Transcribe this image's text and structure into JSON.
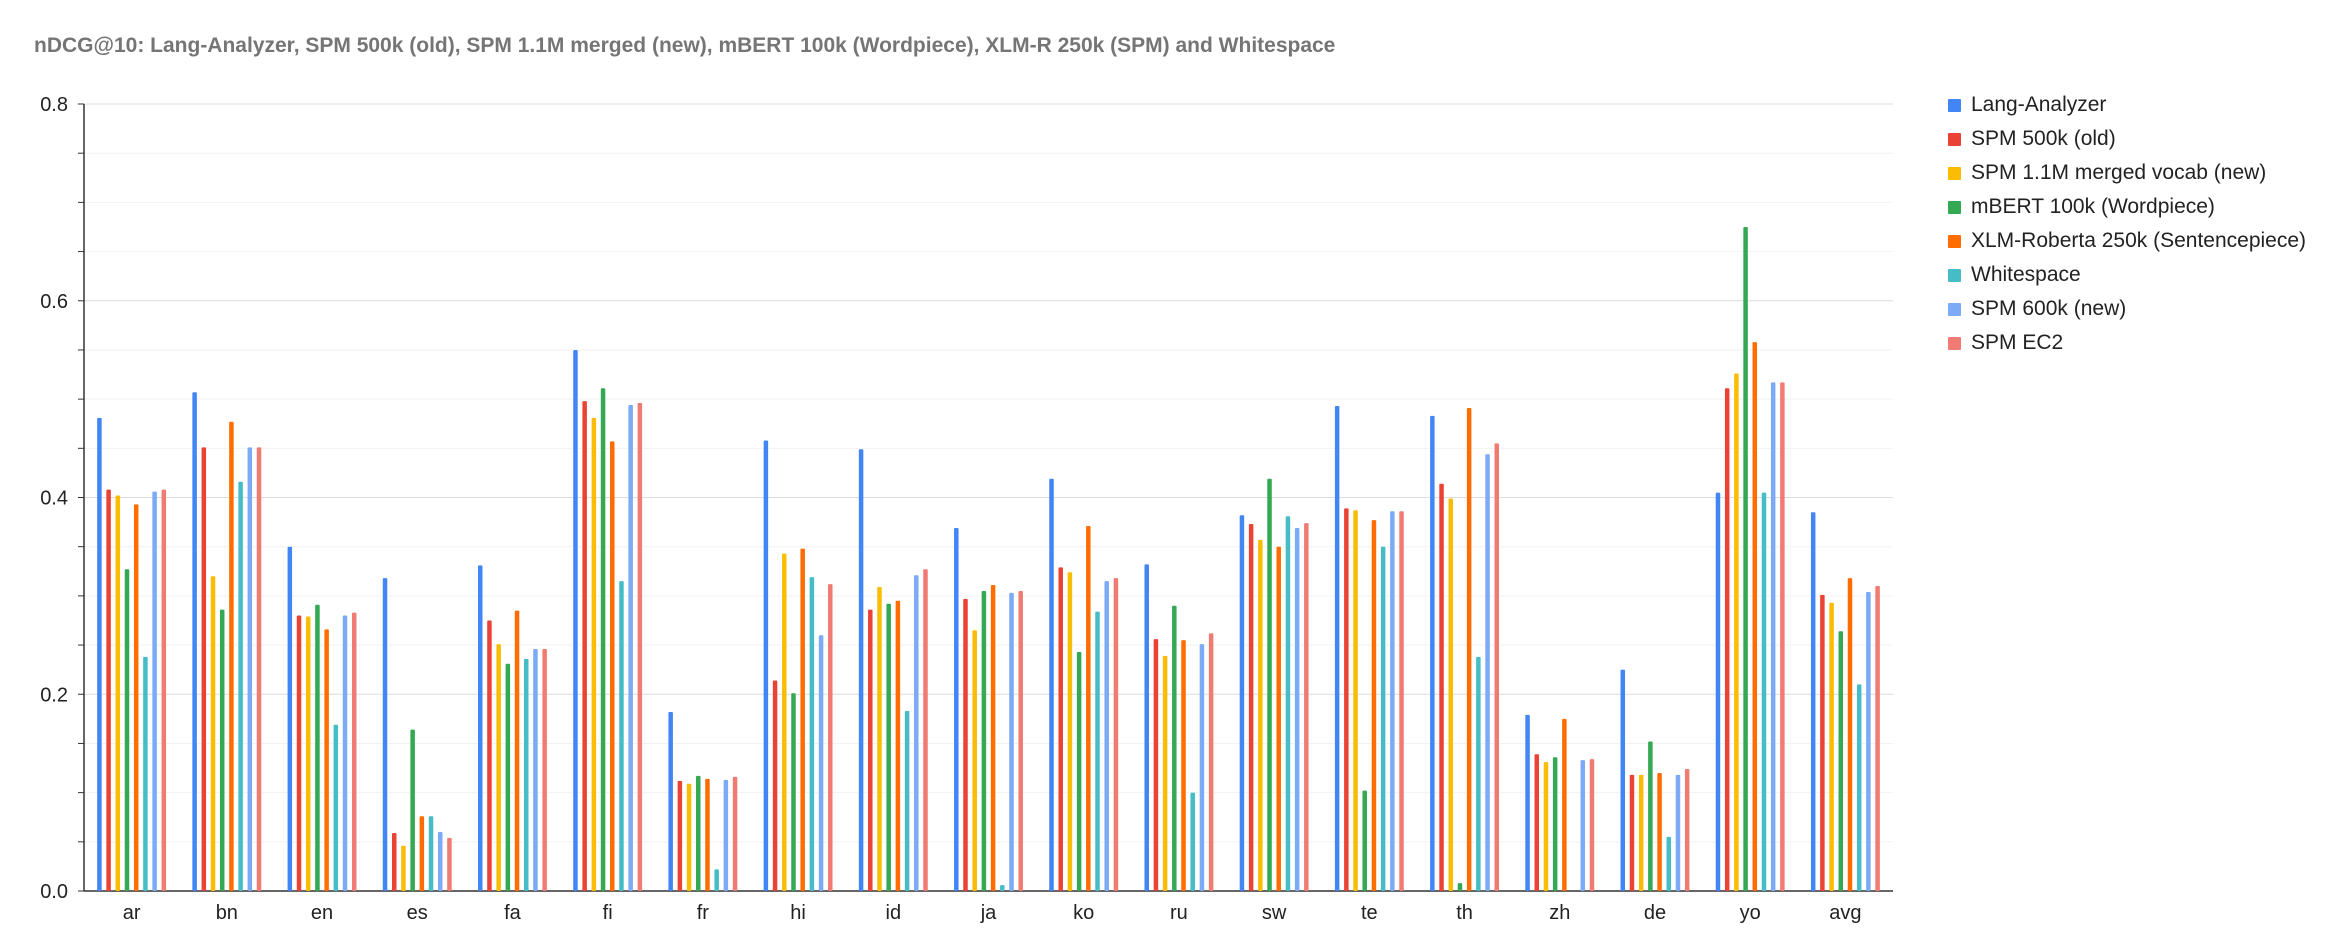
{
  "chart_data": {
    "type": "bar",
    "title": "nDCG@10: Lang-Analyzer, SPM 500k (old), SPM 1.1M merged (new), mBERT 100k (Wordpiece), XLM-R 250k (SPM) and Whitespace",
    "xlabel": "",
    "ylabel": "",
    "ylim": [
      0,
      0.8
    ],
    "yticks": [
      "0.0",
      "0.2",
      "0.4",
      "0.6",
      "0.8"
    ],
    "grid": true,
    "legend_position": "right",
    "categories": [
      "ar",
      "bn",
      "en",
      "es",
      "fa",
      "fi",
      "fr",
      "hi",
      "id",
      "ja",
      "ko",
      "ru",
      "sw",
      "te",
      "th",
      "zh",
      "de",
      "yo",
      "avg"
    ],
    "series": [
      {
        "name": "Lang-Analyzer",
        "color": "#4285f4",
        "values": [
          0.481,
          0.507,
          0.35,
          0.318,
          0.331,
          0.55,
          0.182,
          0.458,
          0.449,
          0.369,
          0.419,
          0.332,
          0.382,
          0.493,
          0.483,
          0.179,
          0.225,
          0.405,
          0.385
        ]
      },
      {
        "name": "SPM 500k (old)",
        "color": "#ea4335",
        "values": [
          0.408,
          0.451,
          0.28,
          0.059,
          0.275,
          0.498,
          0.112,
          0.214,
          0.286,
          0.297,
          0.329,
          0.256,
          0.373,
          0.389,
          0.414,
          0.139,
          0.118,
          0.511,
          0.301
        ]
      },
      {
        "name": "SPM 1.1M merged vocab (new)",
        "color": "#fbbc04",
        "values": [
          0.402,
          0.32,
          0.279,
          0.046,
          0.251,
          0.481,
          0.109,
          0.343,
          0.309,
          0.265,
          0.324,
          0.239,
          0.357,
          0.387,
          0.399,
          0.131,
          0.118,
          0.526,
          0.293
        ]
      },
      {
        "name": "mBERT 100k (Wordpiece)",
        "color": "#34a853",
        "values": [
          0.327,
          0.286,
          0.291,
          0.164,
          0.231,
          0.511,
          0.117,
          0.201,
          0.292,
          0.305,
          0.243,
          0.29,
          0.419,
          0.102,
          0.008,
          0.136,
          0.152,
          0.675,
          0.264
        ]
      },
      {
        "name": "XLM-Roberta 250k (Sentencepiece)",
        "color": "#ff6d01",
        "values": [
          0.393,
          0.477,
          0.266,
          0.076,
          0.285,
          0.457,
          0.114,
          0.348,
          0.295,
          0.311,
          0.371,
          0.255,
          0.35,
          0.377,
          0.491,
          0.175,
          0.12,
          0.558,
          0.318
        ]
      },
      {
        "name": "Whitespace",
        "color": "#46bdc6",
        "values": [
          0.238,
          0.416,
          0.169,
          0.076,
          0.236,
          0.315,
          0.022,
          0.319,
          0.183,
          0.006,
          0.284,
          0.1,
          0.381,
          0.35,
          0.238,
          0.0,
          0.055,
          0.405,
          0.21
        ]
      },
      {
        "name": "SPM 600k (new)",
        "color": "#7baaf7",
        "values": [
          0.406,
          0.451,
          0.28,
          0.06,
          0.246,
          0.494,
          0.113,
          0.26,
          0.321,
          0.303,
          0.315,
          0.251,
          0.369,
          0.386,
          0.444,
          0.133,
          0.118,
          0.517,
          0.304
        ]
      },
      {
        "name": "SPM EC2",
        "color": "#f07b72",
        "values": [
          0.408,
          0.451,
          0.283,
          0.054,
          0.246,
          0.496,
          0.116,
          0.312,
          0.327,
          0.305,
          0.318,
          0.262,
          0.374,
          0.386,
          0.455,
          0.134,
          0.124,
          0.517,
          0.31
        ]
      }
    ]
  }
}
